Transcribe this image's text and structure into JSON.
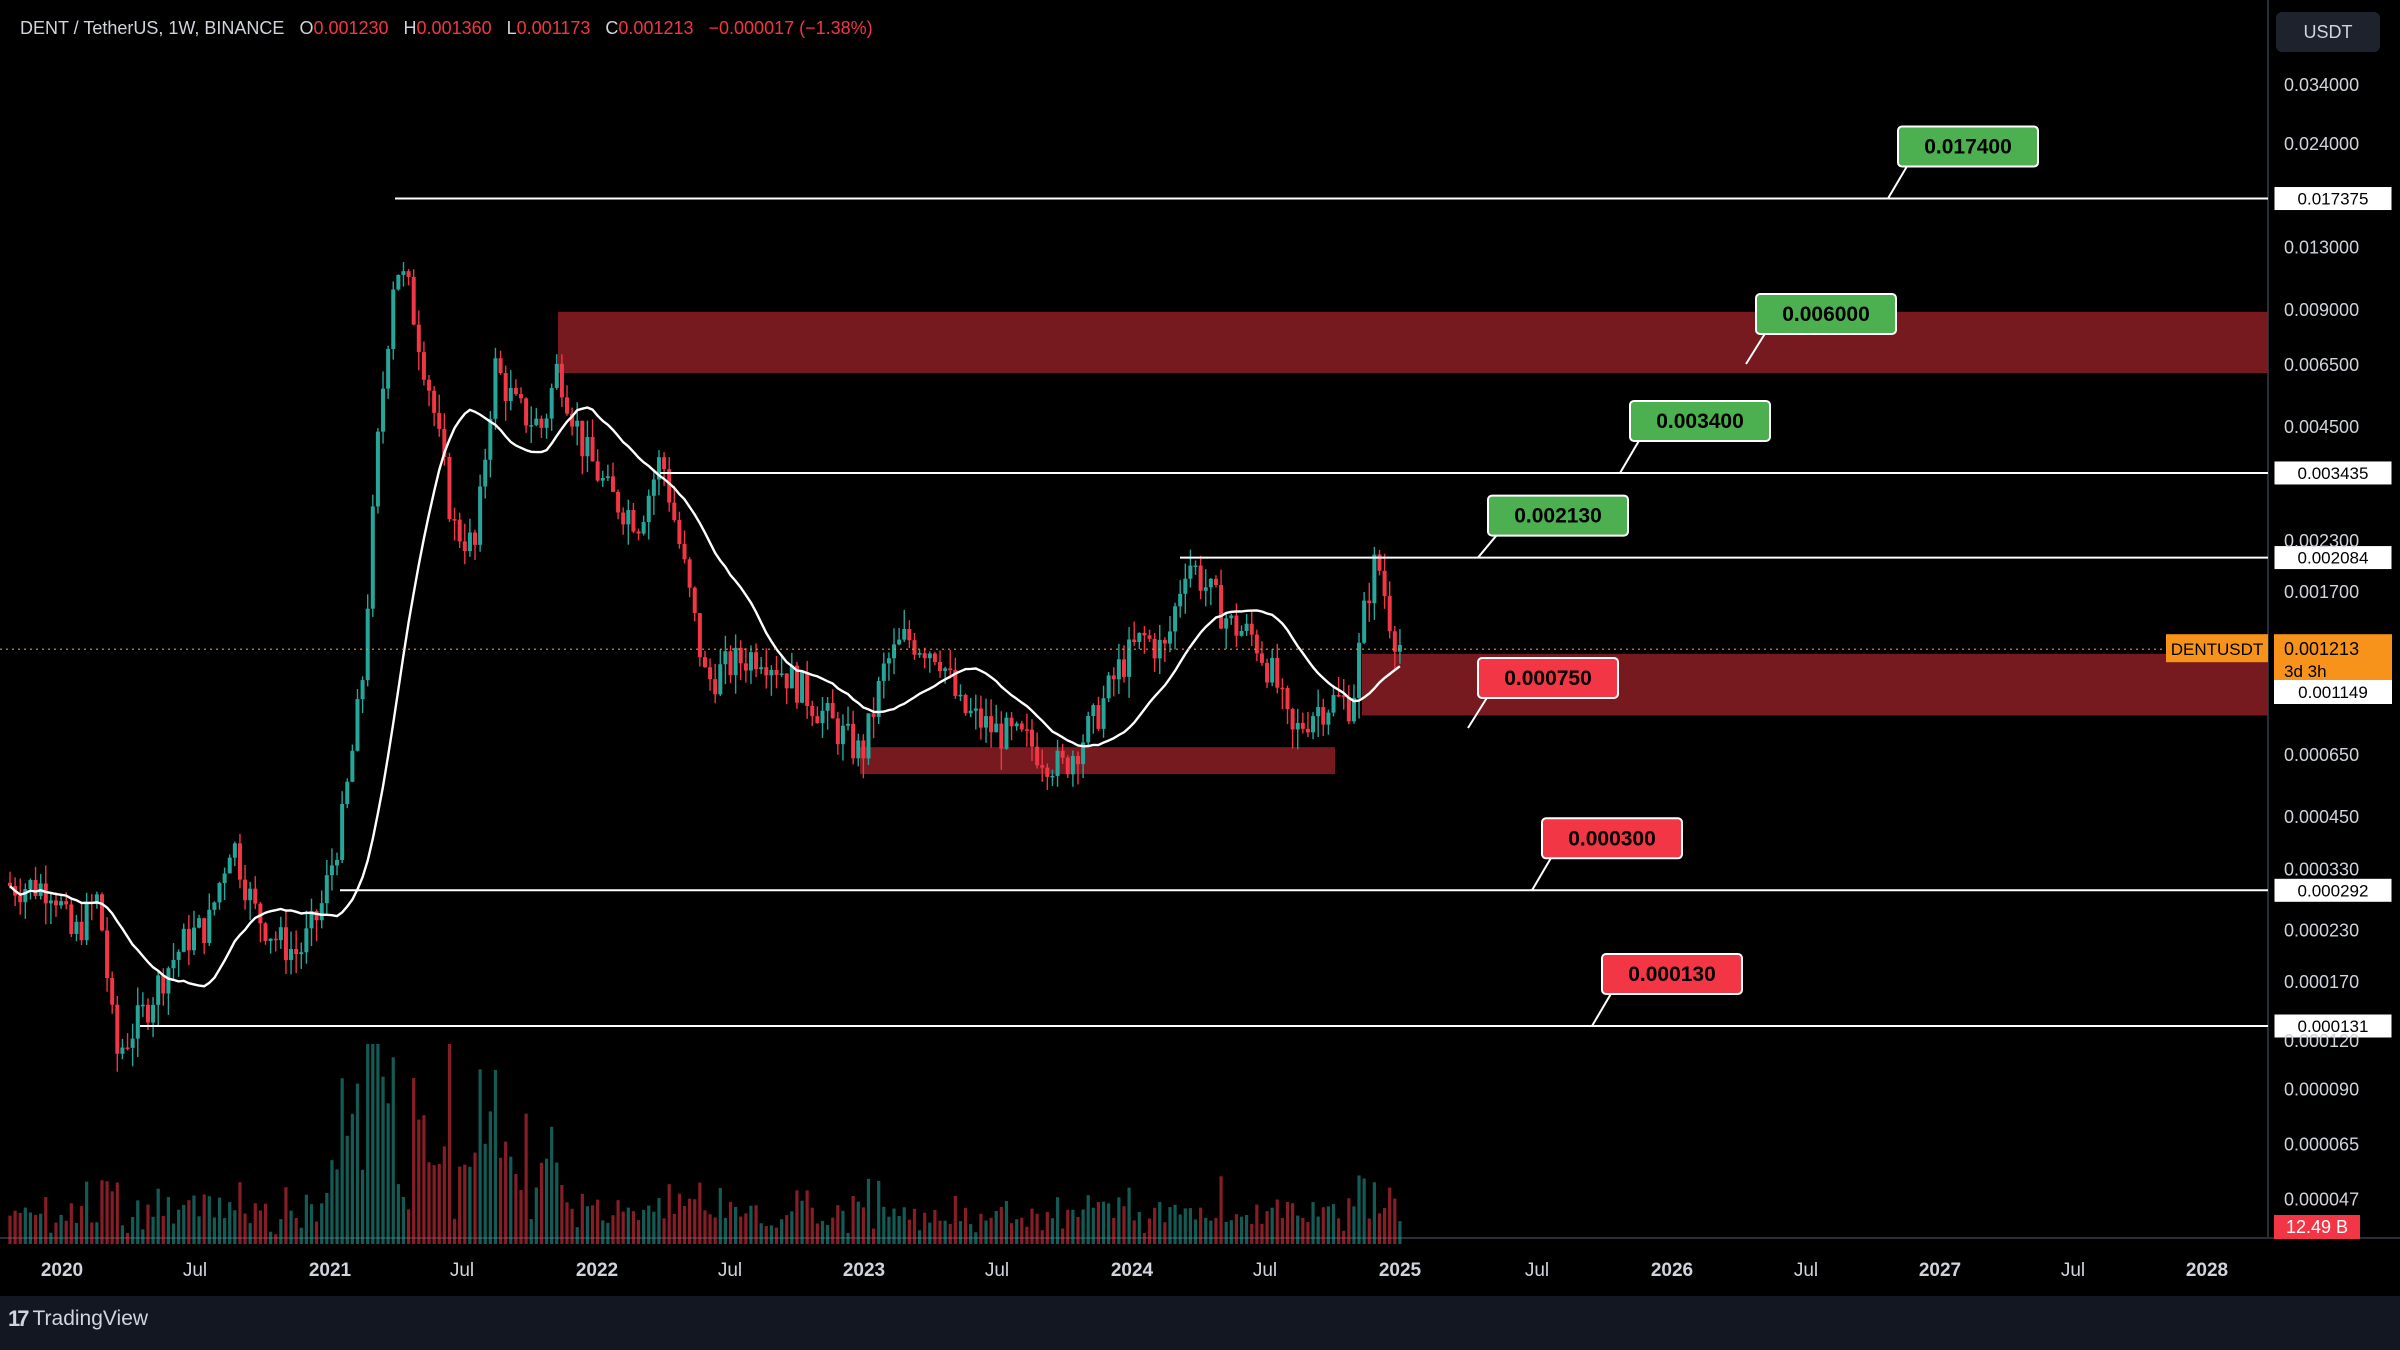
{
  "header": {
    "symbol": "DENT / TetherUS, 1W, BINANCE",
    "o_label": "O",
    "o_value": "0.001230",
    "h_label": "H",
    "h_value": "0.001360",
    "l_label": "L",
    "l_value": "0.001173",
    "c_label": "C",
    "c_value": "0.001213",
    "change": "−0.000017 (−1.38%)"
  },
  "currency_button": "USDT",
  "brand": {
    "name": "TradingView"
  },
  "colors": {
    "up": "#26a69a",
    "down": "#f23645",
    "zone": "#7d1b22",
    "green_label": "#4caf50",
    "red_label": "#f23645",
    "last_price": "#f7931a",
    "volume_badge": "#f23645"
  },
  "chart_data": {
    "type": "candlestick",
    "symbol_tag": "DENTUSDT",
    "timeframe": "1W",
    "x_labels": [
      "2020",
      "Jul",
      "2021",
      "Jul",
      "2022",
      "Jul",
      "2023",
      "Jul",
      "2024",
      "Jul",
      "2025",
      "Jul",
      "2026",
      "Jul",
      "2027",
      "Jul",
      "2028"
    ],
    "y_scale": "log",
    "y_ticks": [
      "0.034000",
      "0.024000",
      "0.013000",
      "0.009000",
      "0.006500",
      "0.004500",
      "0.002300",
      "0.001700",
      "0.000650",
      "0.000450",
      "0.000330",
      "0.000230",
      "0.000170",
      "0.000120",
      "0.000090",
      "0.000065",
      "0.000047"
    ],
    "horizontal_levels": [
      {
        "value": "0.017375",
        "target": "0.017400",
        "kind": "resistance"
      },
      {
        "value": "0.003435",
        "target": "0.003400",
        "kind": "resistance"
      },
      {
        "value": "0.002084",
        "target": "0.002130",
        "kind": "resistance"
      },
      {
        "value": "0.000292",
        "target": "0.000300",
        "kind": "support"
      },
      {
        "value": "0.000131",
        "target": "0.000130",
        "kind": "support"
      }
    ],
    "zones": [
      {
        "from": 0.0062,
        "to": 0.0089,
        "label": "0.006000",
        "kind": "resistance"
      },
      {
        "from": 0.00082,
        "to": 0.00118,
        "label": "0.000750",
        "kind": "support"
      },
      {
        "from": 0.00058,
        "to": 0.00068,
        "label": "",
        "kind": "support"
      }
    ],
    "last_price": {
      "value": "0.001213",
      "countdown": "3d 3h"
    },
    "extra_price_tag": "0.001149",
    "volume_badge": "12.49 B",
    "price_path": [
      [
        "2019-12-20",
        0.0003
      ],
      [
        "2020-01-15",
        0.00022
      ],
      [
        "2020-02-20",
        0.00028
      ],
      [
        "2020-03-15",
        0.00011
      ],
      [
        "2020-04-20",
        0.00014
      ],
      [
        "2020-05-20",
        0.00018
      ],
      [
        "2020-06-20",
        0.00022
      ],
      [
        "2020-07-20",
        0.00024
      ],
      [
        "2020-08-20",
        0.0004
      ],
      [
        "2020-09-20",
        0.00026
      ],
      [
        "2020-10-20",
        0.00022
      ],
      [
        "2020-11-20",
        0.0002
      ],
      [
        "2020-12-20",
        0.00026
      ],
      [
        "2021-01-20",
        0.00045
      ],
      [
        "2021-02-15",
        0.001
      ],
      [
        "2021-03-10",
        0.0045
      ],
      [
        "2021-04-01",
        0.012
      ],
      [
        "2021-04-20",
        0.01
      ],
      [
        "2021-05-20",
        0.0055
      ],
      [
        "2021-06-20",
        0.0025
      ],
      [
        "2021-07-20",
        0.0022
      ],
      [
        "2021-08-15",
        0.0065
      ],
      [
        "2021-09-15",
        0.005
      ],
      [
        "2021-10-20",
        0.0045
      ],
      [
        "2021-11-10",
        0.0065
      ],
      [
        "2021-12-15",
        0.004
      ],
      [
        "2022-01-20",
        0.003
      ],
      [
        "2022-03-01",
        0.0026
      ],
      [
        "2022-04-01",
        0.0038
      ],
      [
        "2022-05-01",
        0.002
      ],
      [
        "2022-06-01",
        0.001
      ],
      [
        "2022-07-01",
        0.0011
      ],
      [
        "2022-08-15",
        0.0012
      ],
      [
        "2022-10-01",
        0.001
      ],
      [
        "2022-11-15",
        0.0008
      ],
      [
        "2022-12-31",
        0.00065
      ],
      [
        "2023-02-01",
        0.0011
      ],
      [
        "2023-03-01",
        0.0013
      ],
      [
        "2023-04-15",
        0.0012
      ],
      [
        "2023-05-15",
        0.00085
      ],
      [
        "2023-07-01",
        0.00075
      ],
      [
        "2023-08-15",
        0.0007
      ],
      [
        "2023-10-01",
        0.0006
      ],
      [
        "2023-11-15",
        0.0008
      ],
      [
        "2023-12-20",
        0.0011
      ],
      [
        "2024-01-20",
        0.0013
      ],
      [
        "2024-02-20",
        0.0012
      ],
      [
        "2024-03-20",
        0.0021
      ],
      [
        "2024-04-20",
        0.0017
      ],
      [
        "2024-05-20",
        0.0014
      ],
      [
        "2024-06-20",
        0.0013
      ],
      [
        "2024-07-20",
        0.001
      ],
      [
        "2024-08-10",
        0.00072
      ],
      [
        "2024-09-10",
        0.00085
      ],
      [
        "2024-10-10",
        0.0009
      ],
      [
        "2024-11-01",
        0.00088
      ],
      [
        "2024-11-20",
        0.0016
      ],
      [
        "2024-12-05",
        0.0021
      ],
      [
        "2024-12-25",
        0.0014
      ],
      [
        "2025-01-10",
        0.0012
      ]
    ]
  }
}
